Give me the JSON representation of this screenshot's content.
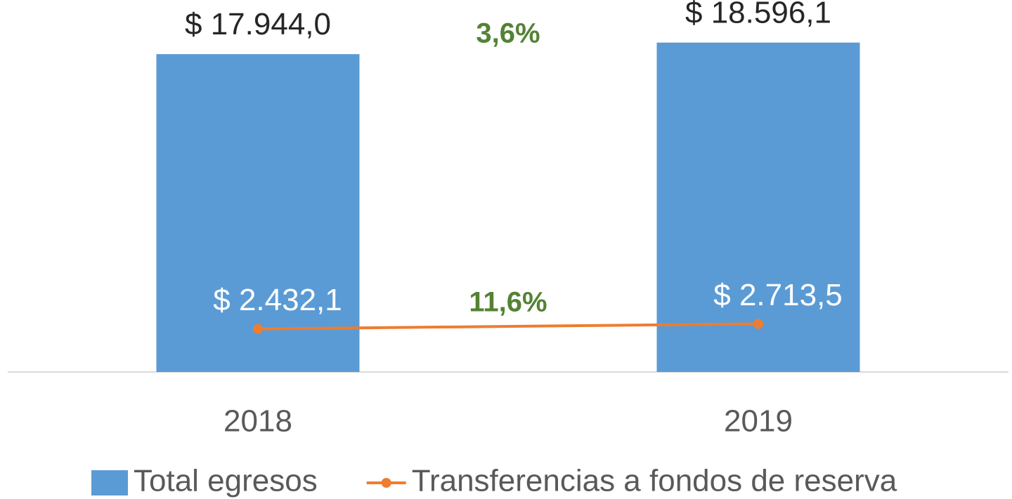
{
  "chart_data": {
    "type": "bar",
    "categories": [
      "2018",
      "2019"
    ],
    "ylim": [
      0,
      21000
    ],
    "series": [
      {
        "name": "Total egresos",
        "type": "bar",
        "color": "#5b9bd5",
        "values": [
          17944.0,
          18596.1
        ],
        "value_labels": [
          "$ 17.944,0",
          "$ 18.596,1"
        ]
      },
      {
        "name": "Transferencias a fondos de reserva",
        "type": "line",
        "color": "#ed7d31",
        "values": [
          2432.1,
          2713.5
        ],
        "value_labels": [
          "$ 2.432,1",
          "$ 2.713,5"
        ]
      }
    ],
    "annotations": [
      "3,6%",
      "11,6%"
    ],
    "annotation_color": "#548235",
    "legend": "bottom"
  }
}
